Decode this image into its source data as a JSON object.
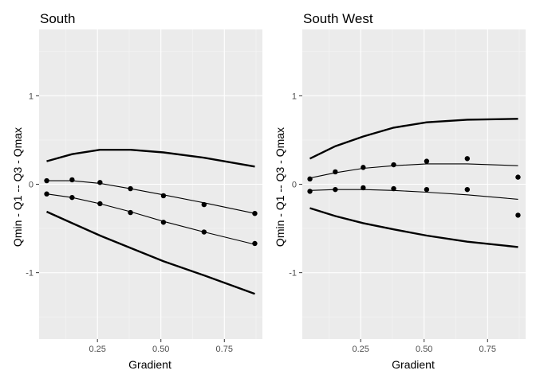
{
  "chart_data": [
    {
      "type": "line",
      "title": "South",
      "xlabel": "Gradient",
      "ylabel": "Qmin - Q1 -- Q3 - Qmax",
      "xlim": [
        0.02,
        0.9
      ],
      "ylim": [
        -1.75,
        1.75
      ],
      "x_ticks": [
        0.25,
        0.5,
        0.75
      ],
      "x_tick_labels": [
        "0.25",
        "0.50",
        "0.75"
      ],
      "y_ticks": [
        -1,
        0,
        1
      ],
      "y_tick_labels": [
        "-1",
        "0",
        "1"
      ],
      "grid": true,
      "series": [
        {
          "role": "qmax",
          "style": "thick-line",
          "x": [
            0.05,
            0.15,
            0.26,
            0.38,
            0.51,
            0.67,
            0.87
          ],
          "y": [
            0.26,
            0.34,
            0.39,
            0.39,
            0.36,
            0.3,
            0.2
          ]
        },
        {
          "role": "q3",
          "style": "thin-line-points",
          "x": [
            0.05,
            0.15,
            0.26,
            0.38,
            0.51,
            0.67,
            0.87
          ],
          "y": [
            0.04,
            0.05,
            0.02,
            -0.05,
            -0.13,
            -0.23,
            -0.33
          ],
          "line_y": [
            0.04,
            0.04,
            0.01,
            -0.05,
            -0.12,
            -0.21,
            -0.33
          ]
        },
        {
          "role": "q1",
          "style": "thin-line-points",
          "x": [
            0.05,
            0.15,
            0.26,
            0.38,
            0.51,
            0.67,
            0.87
          ],
          "y": [
            -0.11,
            -0.15,
            -0.22,
            -0.32,
            -0.43,
            -0.54,
            -0.67
          ],
          "line_y": [
            -0.11,
            -0.15,
            -0.22,
            -0.31,
            -0.42,
            -0.54,
            -0.68
          ]
        },
        {
          "role": "qmin",
          "style": "thick-line",
          "x": [
            0.05,
            0.15,
            0.26,
            0.38,
            0.51,
            0.67,
            0.87
          ],
          "y": [
            -0.31,
            -0.44,
            -0.58,
            -0.72,
            -0.87,
            -1.03,
            -1.24
          ]
        }
      ]
    },
    {
      "type": "line",
      "title": "South West",
      "xlabel": "Gradient",
      "ylabel": "Qmin - Q1 -- Q3 - Qmax",
      "xlim": [
        0.02,
        0.9
      ],
      "ylim": [
        -1.75,
        1.75
      ],
      "x_ticks": [
        0.25,
        0.5,
        0.75
      ],
      "x_tick_labels": [
        "0.25",
        "0.50",
        "0.75"
      ],
      "y_ticks": [
        -1,
        0,
        1
      ],
      "y_tick_labels": [
        "-1",
        "0",
        "1"
      ],
      "grid": true,
      "series": [
        {
          "role": "qmax",
          "style": "thick-line",
          "x": [
            0.05,
            0.15,
            0.26,
            0.38,
            0.51,
            0.67,
            0.87
          ],
          "y": [
            0.29,
            0.43,
            0.54,
            0.64,
            0.7,
            0.73,
            0.74
          ]
        },
        {
          "role": "q3",
          "style": "thin-line-points",
          "x": [
            0.05,
            0.15,
            0.26,
            0.38,
            0.51,
            0.67,
            0.87
          ],
          "y": [
            0.06,
            0.14,
            0.19,
            0.22,
            0.26,
            0.29,
            0.08
          ],
          "line_y": [
            0.07,
            0.13,
            0.18,
            0.21,
            0.23,
            0.23,
            0.21
          ]
        },
        {
          "role": "q1",
          "style": "thin-line-points",
          "x": [
            0.05,
            0.15,
            0.26,
            0.38,
            0.51,
            0.67,
            0.87
          ],
          "y": [
            -0.08,
            -0.06,
            -0.04,
            -0.05,
            -0.06,
            -0.06,
            -0.35
          ],
          "line_y": [
            -0.07,
            -0.06,
            -0.06,
            -0.07,
            -0.09,
            -0.12,
            -0.17
          ]
        },
        {
          "role": "qmin",
          "style": "thick-line",
          "x": [
            0.05,
            0.15,
            0.26,
            0.38,
            0.51,
            0.67,
            0.87
          ],
          "y": [
            -0.27,
            -0.36,
            -0.44,
            -0.51,
            -0.58,
            -0.65,
            -0.71
          ]
        }
      ]
    }
  ]
}
